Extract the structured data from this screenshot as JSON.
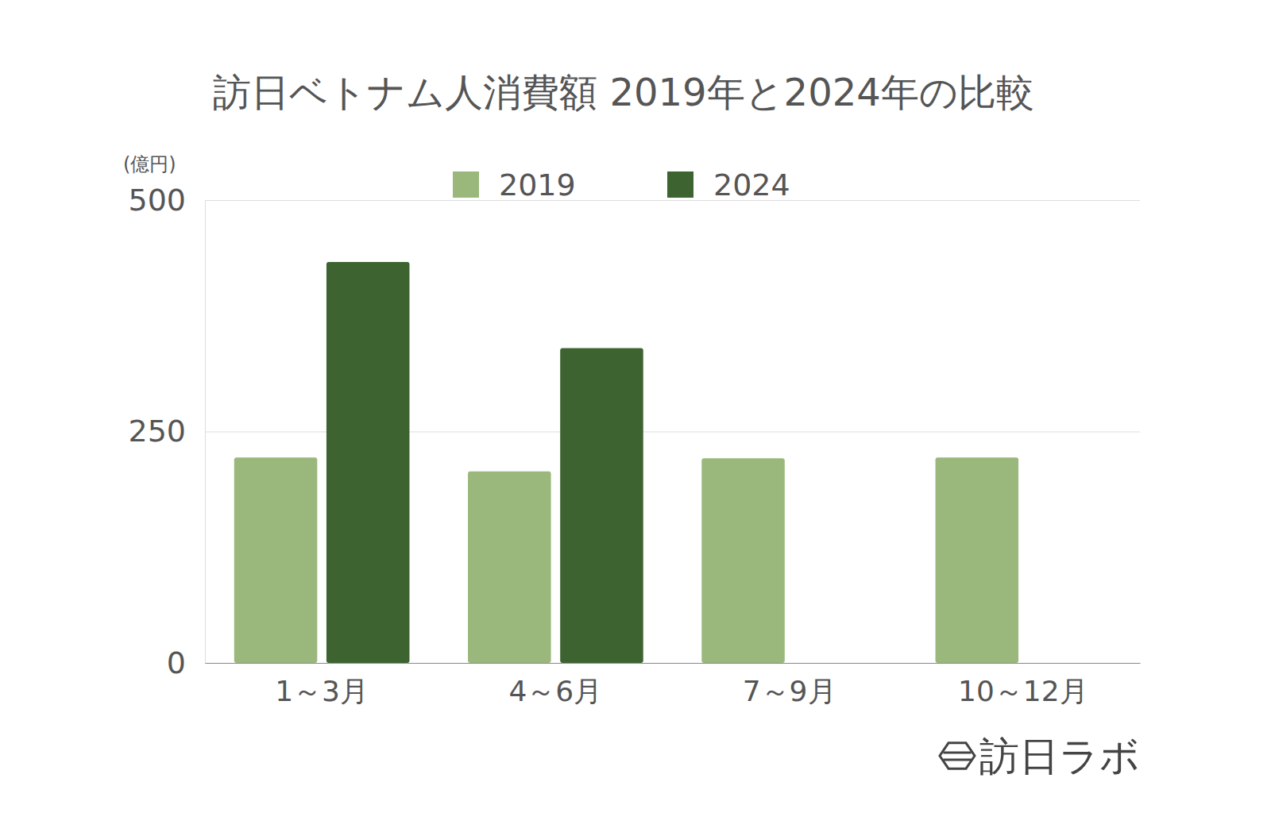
{
  "chart_data": {
    "type": "bar",
    "title": "訪日ベトナム人消費額 2019年と2024年の比較",
    "y_label": "(億円)",
    "categories": [
      "1～3月",
      "4～6月",
      "7～9月",
      "10～12月"
    ],
    "series": [
      {
        "name": "2019",
        "color": "#9ab87c",
        "values": [
          222,
          207,
          221,
          222
        ]
      },
      {
        "name": "2024",
        "color": "#3d6430",
        "values": [
          433,
          340,
          null,
          null
        ]
      }
    ],
    "ylim": [
      0,
      500
    ],
    "yticks": [
      0,
      250,
      500
    ],
    "grid": true,
    "legend": "top",
    "watermark": "訪日ラボ"
  }
}
